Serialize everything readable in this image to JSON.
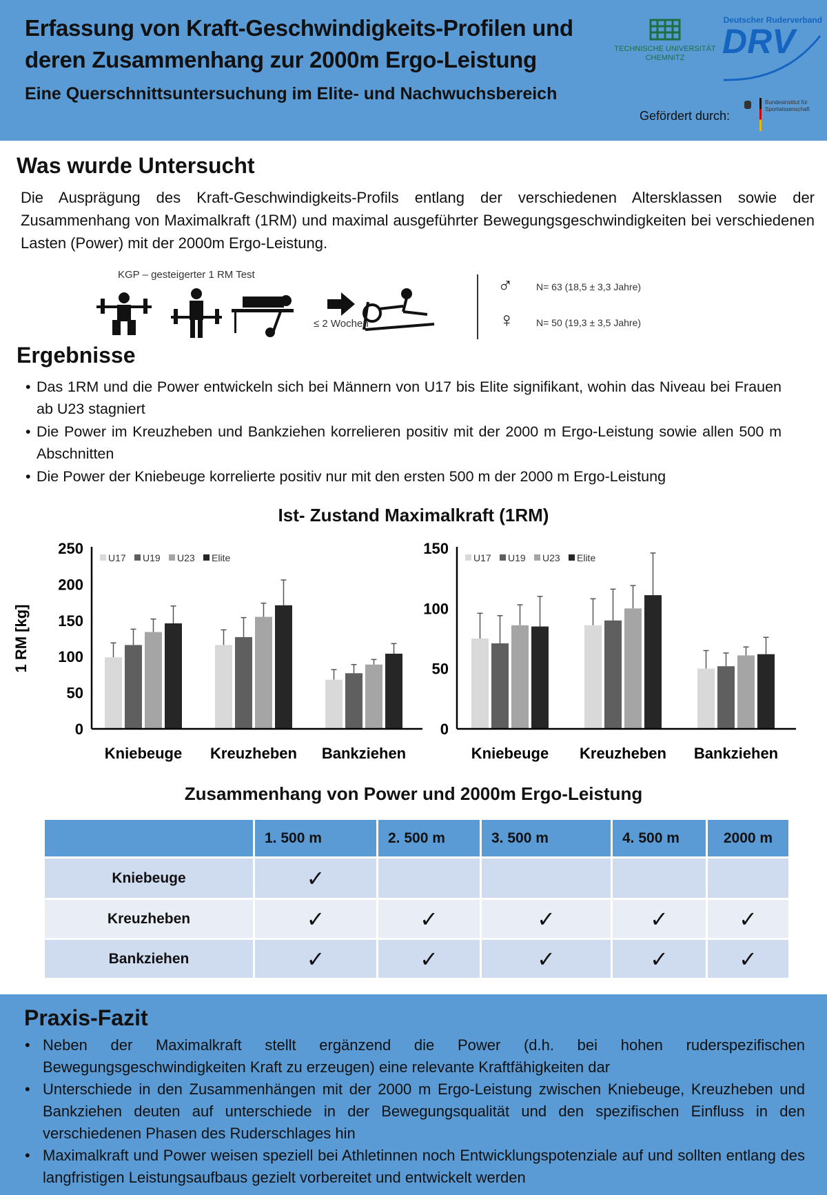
{
  "header": {
    "title_line1": "Erfassung von Kraft-Geschwindigkeits-Profilen und",
    "title_line2": "deren Zusammenhang zur 2000m Ergo-Leistung",
    "subtitle": "Eine Querschnittsuntersuchung im Elite- und Nachwuchsbereich",
    "logo_tu": "TECHNISCHE UNIVERSITÄT CHEMNITZ",
    "logo_drv_top": "Deutscher Ruderverband",
    "logo_drv": "DRV",
    "funded_by": "Gefördert durch:",
    "logo_bisp": "Bundesinstitut für Sportwissenschaft",
    "colors": {
      "background": "#5b9bd5",
      "tu_green": "#1f6e43",
      "drv_blue": "#1565c0"
    }
  },
  "method": {
    "heading": "Was wurde Untersucht",
    "text": "Die Ausprägung des Kraft-Geschwindigkeits-Profils entlang der verschiedenen Altersklassen sowie der Zusammenhang von Maximalkraft (1RM) und maximal ausgeführter Bewegungsgeschwindigkeiten bei verschiedenen Lasten (Power) mit der 2000m Ergo-Leistung.",
    "test_label": "KGP – gesteigerter 1 RM Test",
    "interval": "≤ 2 Wochen",
    "icons": [
      "squat-icon",
      "deadlift-icon",
      "bench-row-icon",
      "arrow-right-icon",
      "rowing-ergometer-icon"
    ],
    "male": "N= 63 (18,5 ± 3,3 Jahre)",
    "female": "N= 50 (19,3 ± 3,5 Jahre)"
  },
  "results": {
    "heading": "Ergebnisse",
    "bullets": [
      "Das 1RM und die Power entwickeln sich bei Männern von U17 bis Elite signifikant, wohin das Niveau bei Frauen ab U23 stagniert",
      "Die Power im Kreuzheben und Bankziehen korrelieren positiv mit der 2000 m Ergo-Leistung sowie allen 500 m Abschnitten",
      "Die Power der Kniebeuge korrelierte positiv nur mit den ersten 500 m der 2000 m Ergo-Leistung"
    ]
  },
  "charts_title": "Ist- Zustand Maximalkraft (1RM)",
  "chart_data": [
    {
      "type": "bar",
      "title": "",
      "ylabel": "1 RM [kg]",
      "ylim": [
        0,
        250
      ],
      "yticks": [
        0,
        50,
        100,
        150,
        200,
        250
      ],
      "categories": [
        "Kniebeuge",
        "Kreuzheben",
        "Bankziehen"
      ],
      "legend": "top-left",
      "grid": false,
      "series": [
        {
          "name": "U17",
          "color": "#d9d9d9",
          "values": [
            99,
            116,
            68
          ],
          "error_upper": [
            119,
            137,
            82
          ]
        },
        {
          "name": "U19",
          "color": "#5f5f5f",
          "values": [
            116,
            127,
            77
          ],
          "error_upper": [
            138,
            154,
            89
          ]
        },
        {
          "name": "U23",
          "color": "#a5a5a5",
          "values": [
            134,
            155,
            89
          ],
          "error_upper": [
            152,
            174,
            96
          ]
        },
        {
          "name": "Elite",
          "color": "#262626",
          "values": [
            146,
            171,
            104
          ],
          "error_upper": [
            170,
            206,
            118
          ]
        }
      ]
    },
    {
      "type": "bar",
      "title": "",
      "ylabel": "",
      "ylim": [
        0,
        150
      ],
      "yticks": [
        0,
        50,
        100,
        150
      ],
      "categories": [
        "Kniebeuge",
        "Kreuzheben",
        "Bankziehen"
      ],
      "legend": "top-left",
      "grid": false,
      "series": [
        {
          "name": "U17",
          "color": "#d9d9d9",
          "values": [
            75,
            86,
            50
          ],
          "error_upper": [
            96,
            108,
            65
          ]
        },
        {
          "name": "U19",
          "color": "#5f5f5f",
          "values": [
            71,
            90,
            52
          ],
          "error_upper": [
            94,
            116,
            63
          ]
        },
        {
          "name": "U23",
          "color": "#a5a5a5",
          "values": [
            86,
            100,
            61
          ],
          "error_upper": [
            103,
            119,
            68
          ]
        },
        {
          "name": "Elite",
          "color": "#262626",
          "values": [
            85,
            111,
            62
          ],
          "error_upper": [
            110,
            146,
            76
          ]
        }
      ]
    }
  ],
  "table": {
    "title": "Zusammenhang von Power und 2000m Ergo-Leistung",
    "columns": [
      "",
      "1. 500 m",
      "2. 500 m",
      "3. 500 m",
      "4. 500 m",
      "2000 m"
    ],
    "rows": [
      {
        "label": "Kniebeuge",
        "cells": [
          "✓",
          "",
          "",
          "",
          ""
        ]
      },
      {
        "label": "Kreuzheben",
        "cells": [
          "✓",
          "✓",
          "✓",
          "✓",
          "✓"
        ]
      },
      {
        "label": "Bankziehen",
        "cells": [
          "✓",
          "✓",
          "✓",
          "✓",
          "✓"
        ]
      }
    ]
  },
  "fazit": {
    "heading": "Praxis-Fazit",
    "bullets": [
      "Neben der Maximalkraft stellt ergänzend die Power (d.h. bei hohen ruderspezifischen Bewegungsgeschwindigkeiten Kraft zu erzeugen) eine relevante Kraftfähigkeiten dar",
      "Unterschiede in den Zusammenhängen mit der 2000 m Ergo-Leistung zwischen Kniebeuge, Kreuzheben und Bankziehen deuten auf unterschiede in der Bewegungsqualität und den spezifischen Einfluss in den verschiedenen Phasen des Ruderschlages hin",
      "Maximalkraft und Power weisen speziell bei Athletinnen noch Entwicklungspotenziale auf und sollten entlang des langfristigen Leistungsaufbaus gezielt vorbereitet und entwickelt werden"
    ]
  }
}
